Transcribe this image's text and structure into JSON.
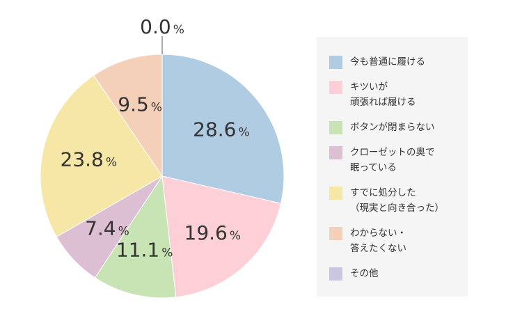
{
  "chart_data": {
    "type": "pie",
    "start_angle": "12 o'clock",
    "direction": "clockwise",
    "legend_position": "right",
    "slices": [
      {
        "label_lines": [
          "今も普通に履ける"
        ],
        "value": 28.6,
        "color": "#b0cce3"
      },
      {
        "label_lines": [
          "キツいが",
          "頑張れば履ける"
        ],
        "value": 19.6,
        "color": "#fdd0d8"
      },
      {
        "label_lines": [
          "ボタンが閉まらない"
        ],
        "value": 11.1,
        "color": "#c9e4b4"
      },
      {
        "label_lines": [
          "クローゼットの奥で",
          "眠っている"
        ],
        "value": 7.4,
        "color": "#dcbfd3"
      },
      {
        "label_lines": [
          "すでに処分した",
          "（現実と向き合った）"
        ],
        "value": 23.8,
        "color": "#f6e7a6"
      },
      {
        "label_lines": [
          "わからない・",
          "答えたくない"
        ],
        "value": 9.5,
        "color": "#f4d0b8"
      },
      {
        "label_lines": [
          "その他"
        ],
        "value": 0.0,
        "color": "#c9c7e0"
      }
    ],
    "value_labels": [
      "28.6",
      "19.6",
      "11.1",
      "7.4",
      "23.8",
      "9.5",
      "0.0"
    ],
    "unit": "%"
  }
}
